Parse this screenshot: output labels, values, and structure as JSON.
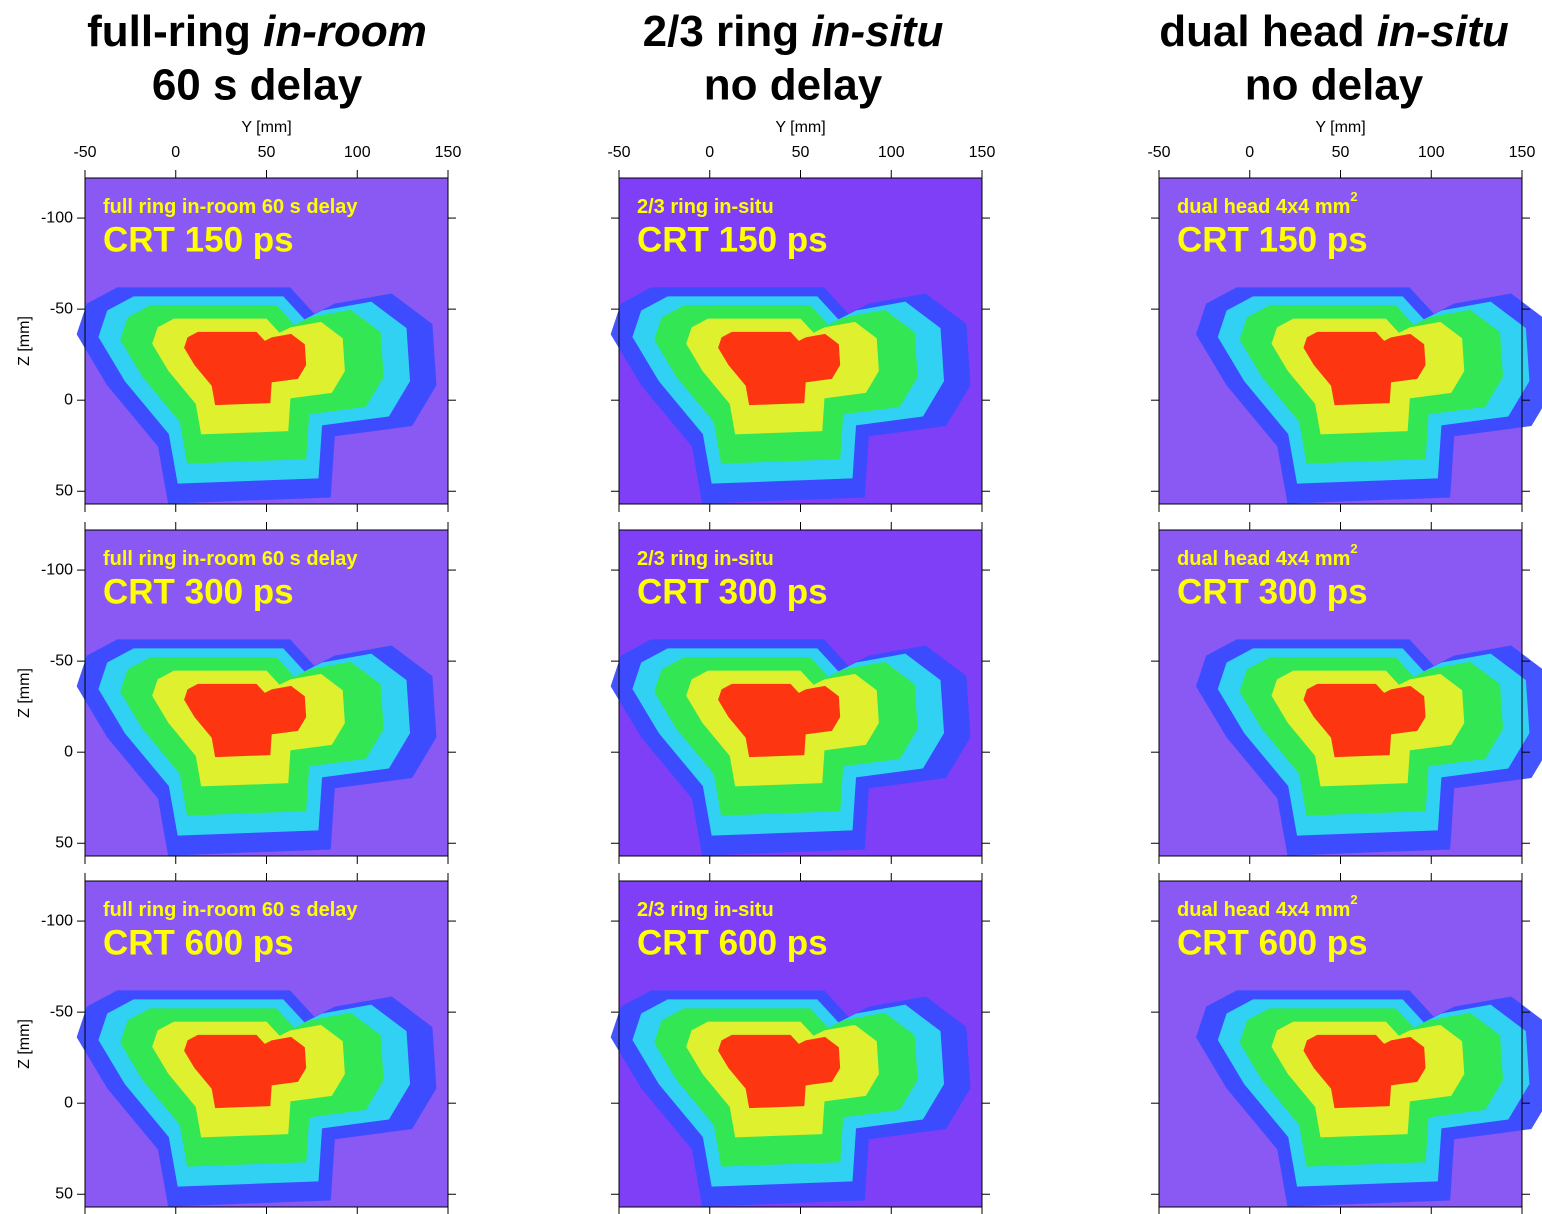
{
  "column_titles": [
    {
      "line1": "full-ring ",
      "line1_italic": "in-room",
      "line2": "60 s delay"
    },
    {
      "line1": "2/3 ring ",
      "line1_italic": "in-situ",
      "line2": "no delay"
    },
    {
      "line1": "dual head ",
      "line1_italic": "in-situ",
      "line2": "no delay"
    }
  ],
  "xlabel": "Y [mm]",
  "ylabel": "Z [mm]",
  "xlim": [
    -50,
    150
  ],
  "xticks": [
    -50,
    0,
    50,
    100,
    150
  ],
  "ylim": [
    57,
    -122
  ],
  "yticks": [
    50,
    0,
    -50,
    -100
  ],
  "panels": [
    [
      {
        "label": "full ring in-room 60 s delay",
        "crt": "CRT 150 ps"
      },
      {
        "label": "2/3 ring in-situ",
        "crt": "CRT 150 ps"
      },
      {
        "label": "dual head 4x4 mm",
        "label_sup": "2",
        "crt": "CRT 150 ps"
      }
    ],
    [
      {
        "label": "full ring in-room 60 s delay",
        "crt": "CRT 300 ps"
      },
      {
        "label": "2/3 ring in-situ",
        "crt": "CRT 300 ps"
      },
      {
        "label": "dual head 4x4 mm",
        "label_sup": "2",
        "crt": "CRT 300 ps"
      }
    ],
    [
      {
        "label": "full ring in-room 60 s delay",
        "crt": "CRT 600 ps"
      },
      {
        "label": "2/3 ring in-situ",
        "crt": "CRT 600 ps"
      },
      {
        "label": "dual head 4x4 mm",
        "label_sup": "2",
        "crt": "CRT 600 ps"
      }
    ]
  ]
}
